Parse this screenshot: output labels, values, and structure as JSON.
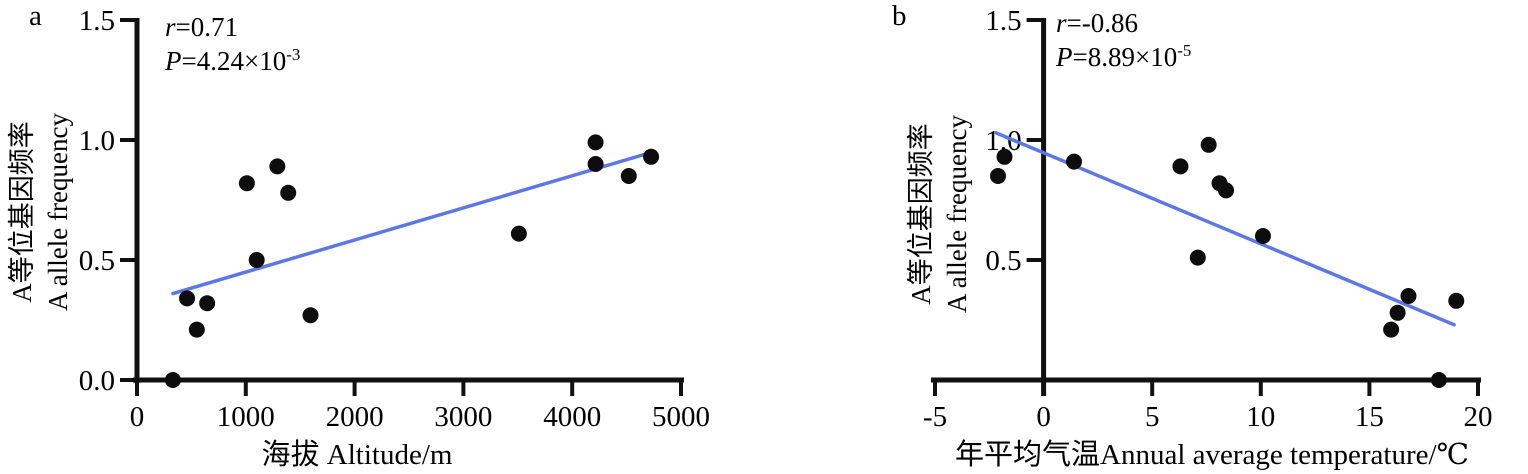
{
  "figure_background": "#ffffff",
  "chart_data": [
    {
      "type": "scatter",
      "panel_label": "a",
      "annotation": {
        "r_var": "r",
        "r_val": "=0.71",
        "p_var": "P",
        "p_val": "=4.24×10",
        "p_exp": "-3"
      },
      "xlabel": "海拔 Altitude/m",
      "ylabel_line1": "A等位基因频率",
      "ylabel_line2": "A allele frequency",
      "xlim": [
        0,
        5000
      ],
      "ylim": [
        0,
        1.5
      ],
      "xticks": [
        0,
        1000,
        2000,
        3000,
        4000,
        5000
      ],
      "xtick_labels": [
        "0",
        "1000",
        "2000",
        "3000",
        "4000",
        "5000"
      ],
      "yticks": [
        0,
        0.5,
        1.0,
        1.5
      ],
      "ytick_labels": [
        "0.0",
        "0.5",
        "1.0",
        "1.5"
      ],
      "grid": false,
      "legend": "none",
      "points": [
        [
          330,
          0.0
        ],
        [
          460,
          0.34
        ],
        [
          550,
          0.21
        ],
        [
          645,
          0.32
        ],
        [
          1010,
          0.82
        ],
        [
          1100,
          0.5
        ],
        [
          1290,
          0.89
        ],
        [
          1390,
          0.78
        ],
        [
          1595,
          0.27
        ],
        [
          3510,
          0.61
        ],
        [
          4215,
          0.99
        ],
        [
          4215,
          0.9
        ],
        [
          4520,
          0.85
        ],
        [
          4725,
          0.93
        ]
      ],
      "trend_line": {
        "x1": 330,
        "y1": 0.36,
        "x2": 4740,
        "y2": 0.95
      },
      "point_color": "#0d0d0d",
      "line_color": "#5d78e4",
      "axis_color": "#111111"
    },
    {
      "type": "scatter",
      "panel_label": "b",
      "annotation": {
        "r_var": "r",
        "r_val": "=-0.86",
        "p_var": "P",
        "p_val": "=8.89×10",
        "p_exp": "-5"
      },
      "xlabel": "年平均气温Annual average temperature/℃",
      "ylabel_line1": "A等位基因频率",
      "ylabel_line2": "A allele frequency",
      "xlim": [
        -5,
        20
      ],
      "ylim": [
        0,
        1.5
      ],
      "xticks": [
        -5,
        0,
        5,
        10,
        15,
        20
      ],
      "xtick_labels": [
        "-5",
        "0",
        "5",
        "10",
        "15",
        "20"
      ],
      "yticks": [
        0.5,
        1.0,
        1.5
      ],
      "ytick_labels": [
        "0.5",
        "1.0",
        "1.5"
      ],
      "grid": false,
      "legend": "none",
      "points": [
        [
          -2.1,
          0.85
        ],
        [
          -1.8,
          0.93
        ],
        [
          1.4,
          0.91
        ],
        [
          6.3,
          0.89
        ],
        [
          7.1,
          0.51
        ],
        [
          7.6,
          0.98
        ],
        [
          8.1,
          0.82
        ],
        [
          8.4,
          0.79
        ],
        [
          10.1,
          0.6
        ],
        [
          16.0,
          0.21
        ],
        [
          16.3,
          0.28
        ],
        [
          16.8,
          0.35
        ],
        [
          18.2,
          0.0
        ],
        [
          19.0,
          0.33
        ]
      ],
      "trend_line": {
        "x1": -2.2,
        "y1": 1.03,
        "x2": 18.9,
        "y2": 0.23
      },
      "point_color": "#0d0d0d",
      "line_color": "#5d78e4",
      "axis_color": "#111111"
    }
  ]
}
